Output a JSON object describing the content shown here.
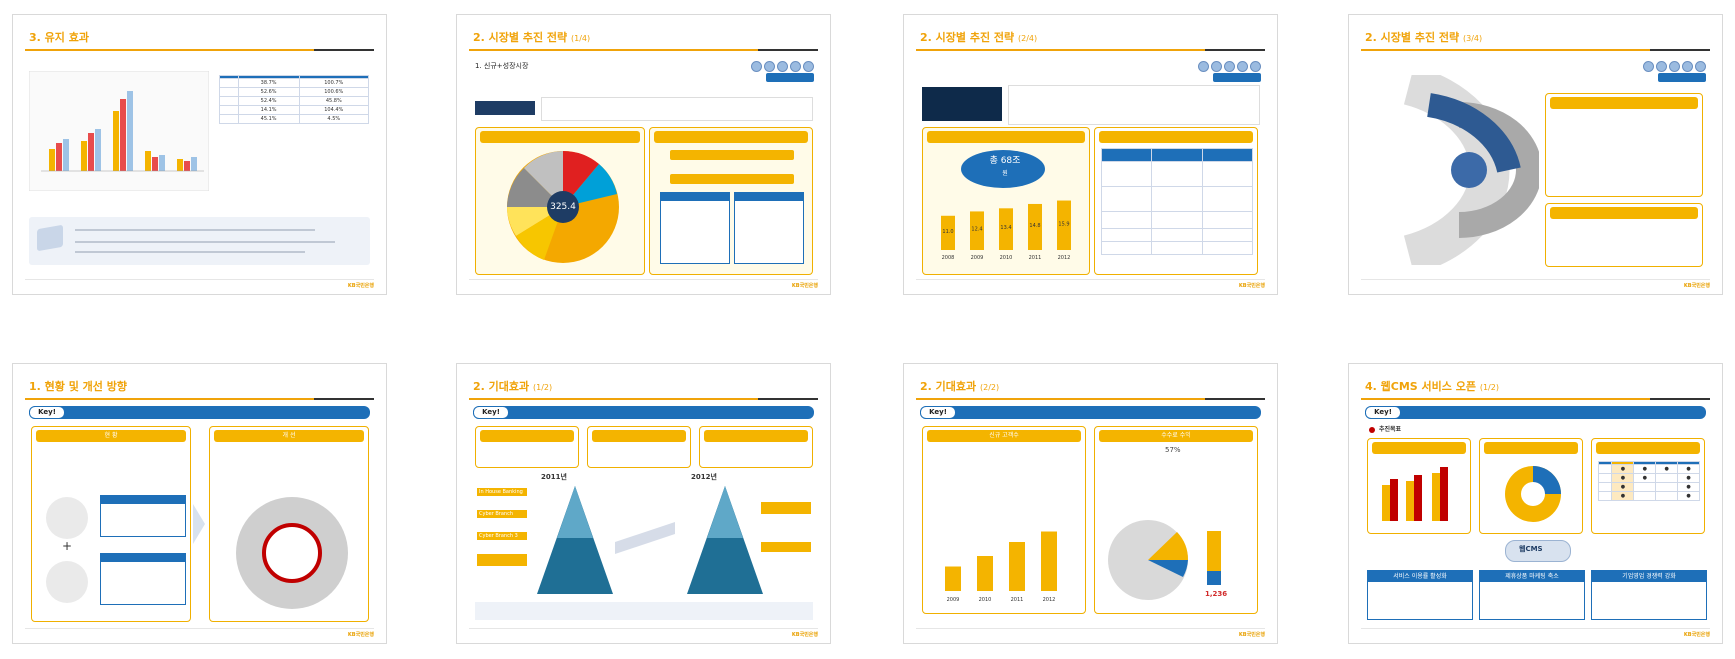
{
  "slides": [
    {
      "title": "3. 유지 효과",
      "subtitle": "",
      "header_note": "",
      "section": "",
      "chart_legend": [
        "",
        "",
        ""
      ],
      "table": {
        "headers": [
          "",
          "",
          ""
        ],
        "rows": [
          {
            "label": "",
            "a": "38.7%",
            "b": "100.7%"
          },
          {
            "label": "",
            "a": "52.6%",
            "b": "100.6%"
          },
          {
            "label": "",
            "a": "52.4%",
            "b": "45.8%"
          },
          {
            "label": "",
            "a": "14.1%",
            "b": "104.4%"
          },
          {
            "label": "",
            "a": "45.1%",
            "b": "4.5%"
          }
        ]
      },
      "footer": ""
    },
    {
      "title": "2. 시장별 추진 전략",
      "subtitle": "(1/4)",
      "header_note": "",
      "tag": "",
      "section": "1. 신규+성장시장",
      "pie_title": "",
      "pie_center_value": "325.4",
      "right_title": "",
      "footer": ""
    },
    {
      "title": "2. 시장별 추진 전략",
      "subtitle": "(2/4)",
      "header_note": "",
      "tag": "",
      "section": "",
      "left_title": "",
      "burst_value": "총 68조",
      "burst_unit": "원",
      "bar_years": [
        "2008",
        "2009",
        "2010",
        "2011",
        "2012"
      ],
      "bar_values": [
        "11.0",
        "12.4",
        "13.4",
        "14.8",
        "15.9"
      ],
      "right_title": "",
      "footer": ""
    },
    {
      "title": "2. 시장별 추진 전략",
      "subtitle": "(3/4)",
      "header_note": "",
      "tag": "",
      "section": "",
      "left_values": [
        "",
        "",
        "",
        ""
      ],
      "arc_labels": [
        "",
        "",
        "",
        "",
        ""
      ],
      "box1_title": "",
      "box2_title": "",
      "footer": ""
    },
    {
      "title": "1. 현황 및 개선 방향",
      "subtitle": "",
      "key_label": "Key!",
      "key_text": "",
      "left_head": "현 황",
      "right_head": "개 선",
      "left_box1": "",
      "left_box2": "",
      "circle_center": "",
      "footer": ""
    },
    {
      "title": "2. 기대효과",
      "subtitle": "(1/2)",
      "key_label": "Key!",
      "key_text": "",
      "year_left": "2011년",
      "year_right": "2012년",
      "left_items": [
        "In House Banking",
        "Cyber Branch",
        "Cyber Branch 3",
        "",
        ""
      ],
      "right_items": [
        "",
        ""
      ],
      "footer": ""
    },
    {
      "title": "2. 기대효과",
      "subtitle": "(2/2)",
      "key_label": "Key!",
      "key_text": "",
      "left_head": "신규 고객수",
      "right_head": "수수료 수익",
      "right_pct": "57%",
      "bar_years": [
        "2009",
        "2010",
        "2011",
        "2012"
      ],
      "right_value": "1,236",
      "footer": ""
    },
    {
      "title": "4. 웹CMS 서비스 오픈",
      "subtitle": "(1/2)",
      "key_label": "Key!",
      "key_text": "",
      "section": "추진목표",
      "head1": "",
      "head2": "",
      "head3": "",
      "center_label": "웹CMS",
      "bottom1": "서비스 이용률 활성화",
      "bottom2": "제휴상품 마케팅 축소",
      "bottom3": "기업영업 경쟁력 강화",
      "footer": ""
    }
  ],
  "colors": {
    "accent": "#f0a30a",
    "blue": "#1e6fb8",
    "brand": "KB국민은행"
  }
}
